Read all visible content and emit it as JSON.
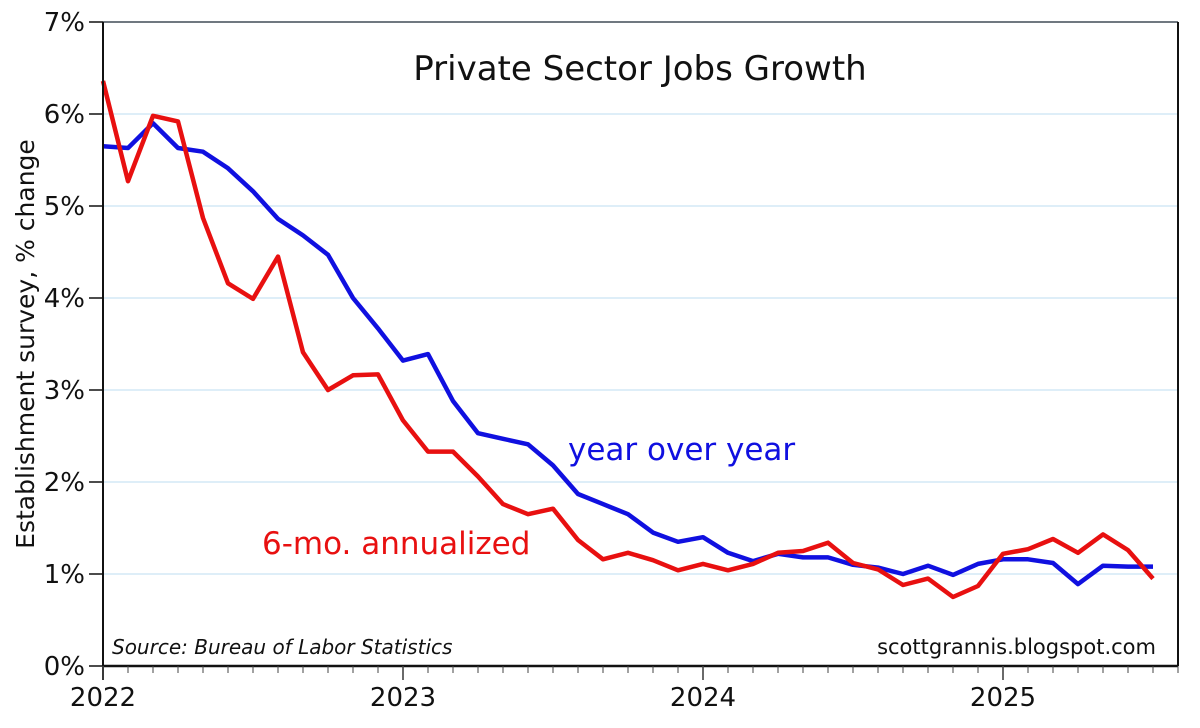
{
  "chart_data": {
    "type": "line",
    "title": "Private Sector Jobs Growth",
    "xlabel": "",
    "ylabel": "Establishment survey, % change",
    "ylim": [
      0,
      7
    ],
    "yticks": [
      0,
      1,
      2,
      3,
      4,
      5,
      6,
      7
    ],
    "ytick_labels": [
      "0%",
      "1%",
      "2%",
      "3%",
      "4%",
      "5%",
      "6%",
      "7%"
    ],
    "xlim": [
      "2022-01",
      "2025-08"
    ],
    "xtick_labels": [
      "2022",
      "2023",
      "2024",
      "2025"
    ],
    "x_minor_ticks": "monthly",
    "grid": true,
    "x": [
      "2022-01",
      "2022-02",
      "2022-03",
      "2022-04",
      "2022-05",
      "2022-06",
      "2022-07",
      "2022-08",
      "2022-09",
      "2022-10",
      "2022-11",
      "2022-12",
      "2023-01",
      "2023-02",
      "2023-03",
      "2023-04",
      "2023-05",
      "2023-06",
      "2023-07",
      "2023-08",
      "2023-09",
      "2023-10",
      "2023-11",
      "2023-12",
      "2024-01",
      "2024-02",
      "2024-03",
      "2024-04",
      "2024-05",
      "2024-06",
      "2024-07",
      "2024-08",
      "2024-09",
      "2024-10",
      "2024-11",
      "2024-12",
      "2025-01",
      "2025-02",
      "2025-03",
      "2025-04",
      "2025-05",
      "2025-06",
      "2025-07"
    ],
    "series": [
      {
        "name": "year over year",
        "color": "#1010e0",
        "values": [
          5.65,
          5.63,
          5.9,
          5.63,
          5.59,
          5.41,
          5.16,
          4.86,
          4.68,
          4.47,
          4.0,
          3.67,
          3.32,
          3.39,
          2.88,
          2.53,
          2.47,
          2.41,
          2.18,
          1.87,
          1.76,
          1.65,
          1.45,
          1.35,
          1.4,
          1.23,
          1.14,
          1.22,
          1.18,
          1.18,
          1.1,
          1.07,
          1.0,
          1.09,
          0.99,
          1.11,
          1.16,
          1.16,
          1.12,
          0.89,
          1.09,
          1.08,
          1.08
        ]
      },
      {
        "name": "6-mo. annualized",
        "color": "#e81010",
        "values": [
          6.36,
          5.27,
          5.98,
          5.92,
          4.87,
          4.16,
          3.99,
          4.45,
          3.41,
          3.0,
          3.16,
          3.17,
          2.67,
          2.33,
          2.33,
          2.06,
          1.76,
          1.65,
          1.71,
          1.37,
          1.16,
          1.23,
          1.15,
          1.04,
          1.11,
          1.04,
          1.11,
          1.23,
          1.25,
          1.34,
          1.12,
          1.05,
          0.88,
          0.95,
          0.75,
          0.87,
          1.22,
          1.27,
          1.38,
          1.23,
          1.43,
          1.26,
          0.95
        ]
      }
    ],
    "annotations": {
      "yoy_label": "year over year",
      "sixmo_label": "6-mo. annualized",
      "source": "Source: Bureau of Labor Statistics",
      "credit": "scottgrannis.blogspot.com"
    },
    "legend": "inline-labels"
  }
}
